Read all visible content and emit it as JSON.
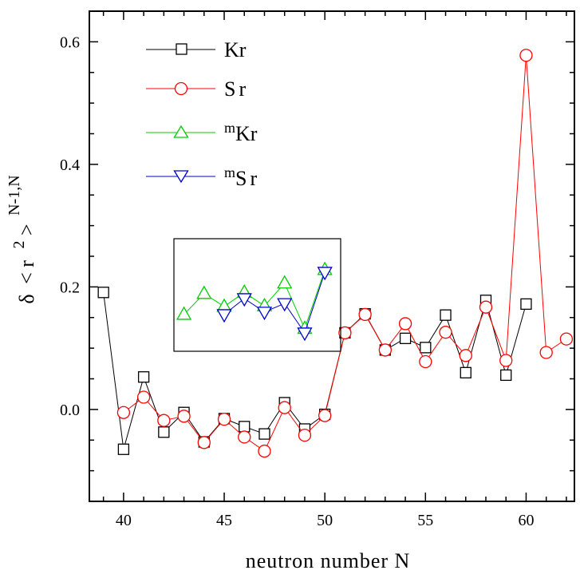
{
  "chart_data": {
    "type": "scatter",
    "xlabel": "neutron number N",
    "ylabel": {
      "delta": "δ",
      "lt": "<",
      "r": "r",
      "exp": "2",
      "gt": ">",
      "sub": "N-1,N"
    },
    "xlim": [
      38.3,
      62.4
    ],
    "ylim": [
      -0.15,
      0.65
    ],
    "x_ticks": [
      40,
      45,
      50,
      55,
      60
    ],
    "y_ticks": [
      0.0,
      0.2,
      0.4,
      0.6
    ],
    "y_tick_labels": [
      "0.0",
      "0.2",
      "0.4",
      "0.6"
    ],
    "legend_position": "top-left",
    "series": [
      {
        "name": "Kr",
        "marker": "square",
        "color": "#000000",
        "points": [
          [
            39,
            0.191
          ],
          [
            40,
            -0.065
          ],
          [
            41,
            0.053
          ],
          [
            42,
            -0.037
          ],
          [
            43,
            -0.005
          ],
          [
            44,
            -0.053
          ],
          [
            45,
            -0.015
          ],
          [
            46,
            -0.028
          ],
          [
            47,
            -0.04
          ],
          [
            48,
            0.011
          ],
          [
            49,
            -0.032
          ],
          [
            50,
            -0.008
          ],
          [
            51,
            0.125
          ],
          [
            52,
            0.156
          ],
          [
            53,
            0.097
          ],
          [
            54,
            0.116
          ],
          [
            55,
            0.101
          ],
          [
            56,
            0.154
          ],
          [
            57,
            0.06
          ],
          [
            58,
            0.178
          ],
          [
            59,
            0.056
          ],
          [
            60,
            0.172
          ]
        ]
      },
      {
        "name": "Sr",
        "marker": "circle",
        "color": "#ff0000",
        "points": [
          [
            40,
            -0.005
          ],
          [
            41,
            0.02
          ],
          [
            42,
            -0.018
          ],
          [
            43,
            -0.011
          ],
          [
            44,
            -0.054
          ],
          [
            45,
            -0.016
          ],
          [
            46,
            -0.045
          ],
          [
            47,
            -0.068
          ],
          [
            48,
            0.003
          ],
          [
            49,
            -0.042
          ],
          [
            50,
            -0.01
          ],
          [
            51,
            0.125
          ],
          [
            52,
            0.155
          ],
          [
            53,
            0.097
          ],
          [
            54,
            0.14
          ],
          [
            55,
            0.078
          ],
          [
            56,
            0.126
          ],
          [
            57,
            0.088
          ],
          [
            58,
            0.167
          ],
          [
            59,
            0.08
          ],
          [
            60,
            0.578
          ],
          [
            61,
            0.093
          ],
          [
            62,
            0.115
          ]
        ]
      },
      {
        "name": "mKr",
        "legend_prefix": "m",
        "legend_main": "Kr",
        "marker": "triangle-up",
        "color": "#00cc00",
        "inset": true,
        "points": [
          [
            43,
            0.155
          ],
          [
            44,
            0.189
          ],
          [
            45,
            0.168
          ],
          [
            46,
            0.191
          ],
          [
            47,
            0.169
          ],
          [
            48,
            0.206
          ],
          [
            49,
            0.132
          ],
          [
            50,
            0.228
          ]
        ]
      },
      {
        "name": "mSr",
        "legend_prefix": "m",
        "legend_main": "Sr",
        "marker": "triangle-down",
        "color": "#0000cc",
        "inset": true,
        "points": [
          [
            45,
            0.155
          ],
          [
            46,
            0.181
          ],
          [
            47,
            0.159
          ],
          [
            48,
            0.173
          ],
          [
            49,
            0.125
          ],
          [
            50,
            0.224
          ]
        ]
      }
    ]
  }
}
